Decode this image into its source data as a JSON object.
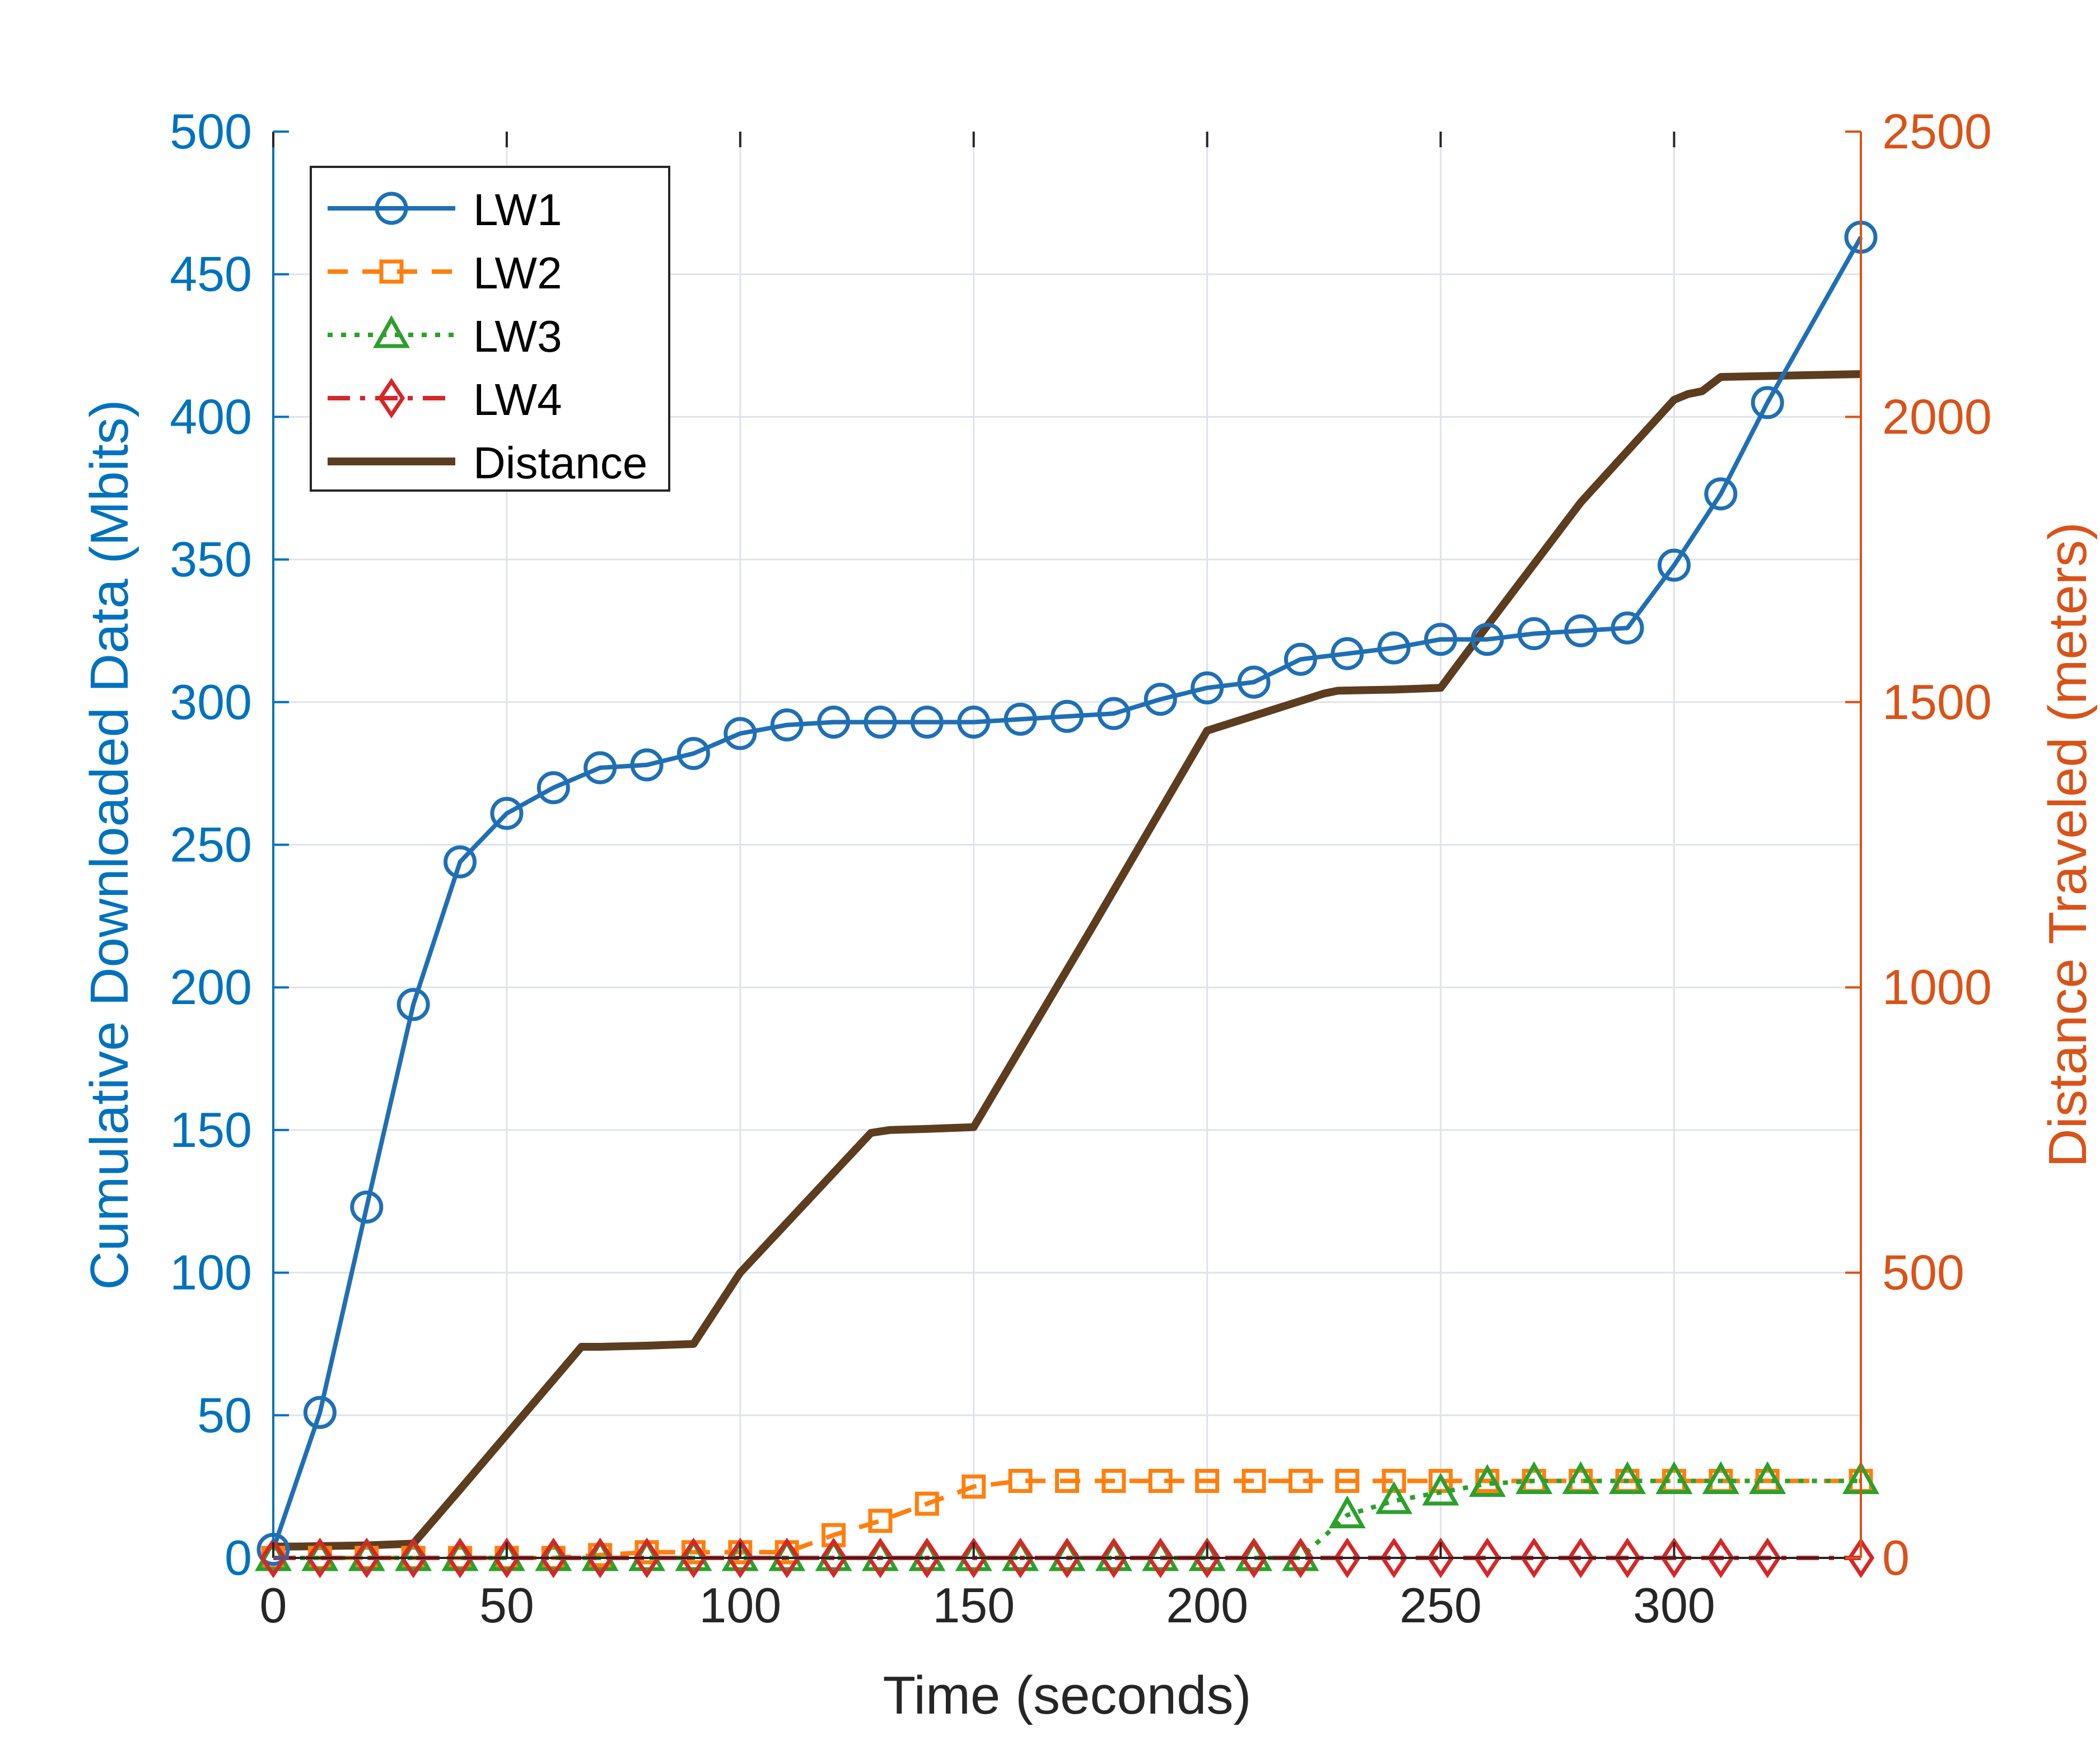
{
  "chart_data": {
    "type": "line",
    "title": "",
    "xlabel": "Time (seconds)",
    "ylabel_left": "Cumulative Downloaded Data (Mbits)",
    "ylabel_right": "Distance Traveled (meters)",
    "xlim": [
      0,
      340
    ],
    "ylim_left": [
      0,
      500
    ],
    "ylim_right": [
      0,
      2500
    ],
    "xticks": [
      0,
      50,
      100,
      150,
      200,
      250,
      300
    ],
    "yticks_left": [
      0,
      50,
      100,
      150,
      200,
      250,
      300,
      350,
      400,
      450,
      500
    ],
    "yticks_right": [
      0,
      500,
      1000,
      1500,
      2000,
      2500
    ],
    "grid": true,
    "legend_position": "top-left",
    "colors": {
      "left_axis": "#0072BD",
      "right_axis": "#D95319",
      "axis": "#262626",
      "grid": "#DFE3EA"
    },
    "series": [
      {
        "name": "LW1",
        "axis": "left",
        "color": "#1F6FB5",
        "line": "solid",
        "marker": "circle",
        "x": [
          0,
          10,
          20,
          30,
          40,
          50,
          60,
          70,
          80,
          90,
          100,
          110,
          120,
          130,
          140,
          150,
          160,
          170,
          180,
          190,
          200,
          210,
          220,
          230,
          240,
          250,
          260,
          270,
          280,
          290,
          300,
          310,
          320,
          340
        ],
        "y": [
          3,
          51,
          123,
          194,
          244,
          261,
          270,
          277,
          278,
          282,
          289,
          292,
          293,
          293,
          293,
          293,
          294,
          295,
          296,
          301,
          305,
          307,
          315,
          317,
          319,
          322,
          322,
          324,
          325,
          326,
          348,
          373,
          405,
          463
        ]
      },
      {
        "name": "LW2",
        "axis": "left",
        "color": "#FF7F0E",
        "line": "dashed",
        "marker": "square",
        "x": [
          0,
          10,
          20,
          30,
          40,
          50,
          60,
          70,
          80,
          90,
          100,
          110,
          120,
          130,
          140,
          150,
          160,
          170,
          180,
          190,
          200,
          210,
          220,
          230,
          240,
          250,
          260,
          270,
          280,
          290,
          300,
          310,
          320,
          340
        ],
        "y": [
          0,
          0,
          0,
          0,
          0,
          0,
          0,
          1,
          2,
          2,
          2,
          2,
          8,
          13,
          19,
          25,
          27,
          27,
          27,
          27,
          27,
          27,
          27,
          27,
          27,
          27,
          27,
          27,
          27,
          27,
          27,
          27,
          27,
          27
        ]
      },
      {
        "name": "LW3",
        "axis": "left",
        "color": "#2CA02C",
        "line": "dotted",
        "marker": "triangle",
        "x": [
          0,
          10,
          20,
          30,
          40,
          50,
          60,
          70,
          80,
          90,
          100,
          110,
          120,
          130,
          140,
          150,
          160,
          170,
          180,
          190,
          200,
          210,
          220,
          230,
          240,
          250,
          260,
          270,
          280,
          290,
          300,
          310,
          320,
          340
        ],
        "y": [
          0,
          0,
          0,
          0,
          0,
          0,
          0,
          0,
          0,
          0,
          0,
          0,
          0,
          0,
          0,
          0,
          0,
          0,
          0,
          0,
          0,
          0,
          0,
          15,
          20,
          23,
          26,
          27,
          27,
          27,
          27,
          27,
          27,
          27
        ]
      },
      {
        "name": "LW4",
        "axis": "left",
        "color": "#D62728",
        "line": "dashdot",
        "marker": "diamond",
        "x": [
          0,
          10,
          20,
          30,
          40,
          50,
          60,
          70,
          80,
          90,
          100,
          110,
          120,
          130,
          140,
          150,
          160,
          170,
          180,
          190,
          200,
          210,
          220,
          230,
          240,
          250,
          260,
          270,
          280,
          290,
          300,
          310,
          320,
          340
        ],
        "y": [
          0,
          0,
          0,
          0,
          0,
          0,
          0,
          0,
          0,
          0,
          0,
          0,
          0,
          0,
          0,
          0,
          0,
          0,
          0,
          0,
          0,
          0,
          0,
          0,
          0,
          0,
          0,
          0,
          0,
          0,
          0,
          0,
          0,
          0
        ]
      },
      {
        "name": "Distance",
        "axis": "right",
        "color": "#5C3D20",
        "line": "solid",
        "marker": "none",
        "x": [
          0,
          5,
          20,
          30,
          40,
          66,
          70,
          80,
          90,
          100,
          128,
          132,
          140,
          150,
          175,
          200,
          225,
          228,
          240,
          250,
          255,
          280,
          300,
          303,
          306,
          310,
          340
        ],
        "y": [
          20,
          20,
          22,
          25,
          120,
          370,
          370,
          372,
          375,
          500,
          745,
          750,
          752,
          755,
          1100,
          1450,
          1515,
          1520,
          1522,
          1525,
          1580,
          1850,
          2030,
          2040,
          2045,
          2070,
          2075
        ]
      }
    ]
  }
}
